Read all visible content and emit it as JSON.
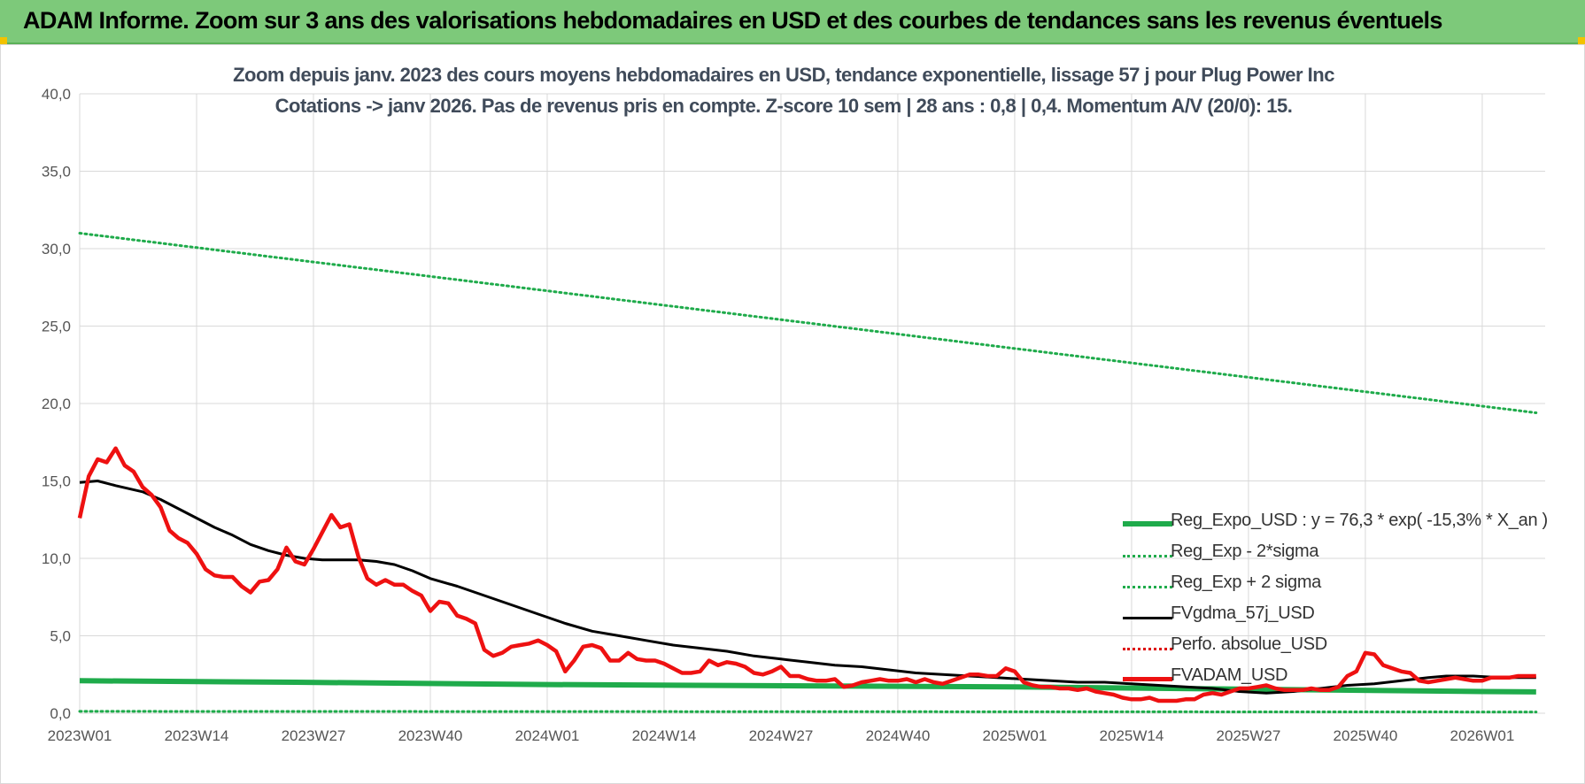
{
  "banner": {
    "title": "ADAM Informe. Zoom sur 3 ans des valorisations hebdomadaires en USD et des courbes de tendances sans les revenus éventuels"
  },
  "colors": {
    "banner": "#7dc97a",
    "trend": "#1fab4b",
    "price": "#ee1111",
    "smooth": "#000000",
    "perf": "#dd0000"
  },
  "chart_data": {
    "type": "line",
    "title": "Zoom depuis janv. 2023 des cours moyens hebdomadaires en USD, tendance exponentielle, lissage 57 j pour Plug Power Inc",
    "subtitle": "Cotations -> janv 2026. Pas de revenus pris en compte. Z-score 10 sem  | 28 ans : 0,8 | 0,4. Momentum A/V (20/0): 15.",
    "xlabel": "",
    "ylabel": "",
    "ylim": [
      0,
      40
    ],
    "yticks": [
      "0,0",
      "5,0",
      "10,0",
      "15,0",
      "20,0",
      "25,0",
      "30,0",
      "35,0",
      "40,0"
    ],
    "xticks": [
      "2023W01",
      "2023W14",
      "2023W27",
      "2023W40",
      "2024W01",
      "2024W14",
      "2024W27",
      "2024W40",
      "2025W01",
      "2025W14",
      "2025W27",
      "2025W40",
      "2026W01"
    ],
    "x_weeks": 163,
    "grid": true,
    "legend_position": "bottom-right",
    "series": [
      {
        "name": "Reg_Expo_USD : y = 76,3 * exp( -15,3% *  X_an )",
        "style": "thick-solid",
        "color": "#1fab4b",
        "points": [
          [
            0,
            2.1
          ],
          [
            24,
            2.0
          ],
          [
            52,
            1.85
          ],
          [
            104,
            1.7
          ],
          [
            156,
            1.4
          ],
          [
            162,
            1.38
          ]
        ]
      },
      {
        "name": "Reg_Exp - 2*sigma",
        "style": "dotted",
        "color": "#1fab4b",
        "points": [
          [
            0,
            0.12
          ],
          [
            162,
            0.08
          ]
        ]
      },
      {
        "name": "Reg_Exp + 2 sigma",
        "style": "dotted",
        "color": "#1fab4b",
        "points": [
          [
            0,
            31.0
          ],
          [
            162,
            19.4
          ]
        ]
      },
      {
        "name": "FVgdma_57j_USD",
        "style": "solid",
        "color": "#000000",
        "points": [
          [
            0,
            14.9
          ],
          [
            2,
            15.0
          ],
          [
            4,
            14.7
          ],
          [
            7,
            14.3
          ],
          [
            9,
            13.8
          ],
          [
            11,
            13.2
          ],
          [
            13,
            12.6
          ],
          [
            15,
            12.0
          ],
          [
            17,
            11.5
          ],
          [
            19,
            10.9
          ],
          [
            21,
            10.5
          ],
          [
            23,
            10.2
          ],
          [
            25,
            10.0
          ],
          [
            27,
            9.9
          ],
          [
            29,
            9.9
          ],
          [
            31,
            9.9
          ],
          [
            33,
            9.8
          ],
          [
            35,
            9.6
          ],
          [
            37,
            9.2
          ],
          [
            39,
            8.7
          ],
          [
            42,
            8.2
          ],
          [
            45,
            7.6
          ],
          [
            48,
            7.0
          ],
          [
            51,
            6.4
          ],
          [
            54,
            5.8
          ],
          [
            57,
            5.3
          ],
          [
            60,
            5.0
          ],
          [
            63,
            4.7
          ],
          [
            66,
            4.4
          ],
          [
            69,
            4.2
          ],
          [
            72,
            4.0
          ],
          [
            75,
            3.7
          ],
          [
            78,
            3.5
          ],
          [
            81,
            3.3
          ],
          [
            84,
            3.1
          ],
          [
            87,
            3.0
          ],
          [
            90,
            2.8
          ],
          [
            93,
            2.6
          ],
          [
            96,
            2.5
          ],
          [
            99,
            2.4
          ],
          [
            102,
            2.3
          ],
          [
            105,
            2.2
          ],
          [
            108,
            2.1
          ],
          [
            111,
            2.0
          ],
          [
            114,
            2.0
          ],
          [
            117,
            1.9
          ],
          [
            120,
            1.8
          ],
          [
            123,
            1.7
          ],
          [
            126,
            1.6
          ],
          [
            129,
            1.4
          ],
          [
            132,
            1.3
          ],
          [
            135,
            1.4
          ],
          [
            138,
            1.6
          ],
          [
            141,
            1.8
          ],
          [
            144,
            1.9
          ],
          [
            147,
            2.1
          ],
          [
            150,
            2.3
          ],
          [
            152,
            2.4
          ],
          [
            155,
            2.4
          ],
          [
            158,
            2.3
          ],
          [
            162,
            2.3
          ]
        ]
      },
      {
        "name": "Perfo. absolue_USD",
        "style": "dotted",
        "color": "#dd0000",
        "points": []
      },
      {
        "name": "FVADAM_USD",
        "style": "thick-solid",
        "color": "#ee1111",
        "points": [
          [
            0,
            12.6
          ],
          [
            1,
            15.3
          ],
          [
            2,
            16.4
          ],
          [
            3,
            16.2
          ],
          [
            4,
            17.1
          ],
          [
            5,
            16.0
          ],
          [
            6,
            15.6
          ],
          [
            7,
            14.6
          ],
          [
            8,
            14.1
          ],
          [
            9,
            13.3
          ],
          [
            10,
            11.8
          ],
          [
            11,
            11.3
          ],
          [
            12,
            11.0
          ],
          [
            13,
            10.3
          ],
          [
            14,
            9.3
          ],
          [
            15,
            8.9
          ],
          [
            16,
            8.8
          ],
          [
            17,
            8.8
          ],
          [
            18,
            8.2
          ],
          [
            19,
            7.8
          ],
          [
            20,
            8.5
          ],
          [
            21,
            8.6
          ],
          [
            22,
            9.3
          ],
          [
            23,
            10.7
          ],
          [
            24,
            9.8
          ],
          [
            25,
            9.6
          ],
          [
            26,
            10.6
          ],
          [
            27,
            11.7
          ],
          [
            28,
            12.8
          ],
          [
            29,
            12.0
          ],
          [
            30,
            12.2
          ],
          [
            31,
            10.1
          ],
          [
            32,
            8.7
          ],
          [
            33,
            8.3
          ],
          [
            34,
            8.6
          ],
          [
            35,
            8.3
          ],
          [
            36,
            8.3
          ],
          [
            37,
            7.9
          ],
          [
            38,
            7.6
          ],
          [
            39,
            6.6
          ],
          [
            40,
            7.2
          ],
          [
            41,
            7.1
          ],
          [
            42,
            6.3
          ],
          [
            43,
            6.1
          ],
          [
            44,
            5.8
          ],
          [
            45,
            4.1
          ],
          [
            46,
            3.7
          ],
          [
            47,
            3.9
          ],
          [
            48,
            4.3
          ],
          [
            49,
            4.4
          ],
          [
            50,
            4.5
          ],
          [
            51,
            4.7
          ],
          [
            52,
            4.4
          ],
          [
            53,
            4.0
          ],
          [
            54,
            2.7
          ],
          [
            55,
            3.4
          ],
          [
            56,
            4.3
          ],
          [
            57,
            4.4
          ],
          [
            58,
            4.2
          ],
          [
            59,
            3.4
          ],
          [
            60,
            3.4
          ],
          [
            61,
            3.9
          ],
          [
            62,
            3.5
          ],
          [
            63,
            3.4
          ],
          [
            64,
            3.4
          ],
          [
            65,
            3.2
          ],
          [
            66,
            2.9
          ],
          [
            67,
            2.6
          ],
          [
            68,
            2.6
          ],
          [
            69,
            2.7
          ],
          [
            70,
            3.4
          ],
          [
            71,
            3.1
          ],
          [
            72,
            3.3
          ],
          [
            73,
            3.2
          ],
          [
            74,
            3.0
          ],
          [
            75,
            2.6
          ],
          [
            76,
            2.5
          ],
          [
            77,
            2.7
          ],
          [
            78,
            3.0
          ],
          [
            79,
            2.4
          ],
          [
            80,
            2.4
          ],
          [
            81,
            2.2
          ],
          [
            82,
            2.1
          ],
          [
            83,
            2.1
          ],
          [
            84,
            2.2
          ],
          [
            85,
            1.7
          ],
          [
            86,
            1.8
          ],
          [
            87,
            2.0
          ],
          [
            88,
            2.1
          ],
          [
            89,
            2.2
          ],
          [
            90,
            2.1
          ],
          [
            91,
            2.1
          ],
          [
            92,
            2.2
          ],
          [
            93,
            2.0
          ],
          [
            94,
            2.2
          ],
          [
            95,
            2.0
          ],
          [
            96,
            1.9
          ],
          [
            97,
            2.1
          ],
          [
            98,
            2.3
          ],
          [
            99,
            2.5
          ],
          [
            100,
            2.5
          ],
          [
            101,
            2.4
          ],
          [
            102,
            2.4
          ],
          [
            103,
            2.9
          ],
          [
            104,
            2.7
          ],
          [
            105,
            2.0
          ],
          [
            106,
            1.8
          ],
          [
            107,
            1.7
          ],
          [
            108,
            1.7
          ],
          [
            109,
            1.6
          ],
          [
            110,
            1.6
          ],
          [
            111,
            1.5
          ],
          [
            112,
            1.6
          ],
          [
            113,
            1.4
          ],
          [
            114,
            1.3
          ],
          [
            115,
            1.2
          ],
          [
            116,
            1.0
          ],
          [
            117,
            0.9
          ],
          [
            118,
            0.9
          ],
          [
            119,
            1.0
          ],
          [
            120,
            0.8
          ],
          [
            121,
            0.8
          ],
          [
            122,
            0.8
          ],
          [
            123,
            0.9
          ],
          [
            124,
            0.9
          ],
          [
            125,
            1.2
          ],
          [
            126,
            1.3
          ],
          [
            127,
            1.2
          ],
          [
            128,
            1.4
          ],
          [
            129,
            1.6
          ],
          [
            130,
            1.6
          ],
          [
            131,
            1.7
          ],
          [
            132,
            1.8
          ],
          [
            133,
            1.6
          ],
          [
            134,
            1.5
          ],
          [
            135,
            1.5
          ],
          [
            136,
            1.5
          ],
          [
            137,
            1.6
          ],
          [
            138,
            1.5
          ],
          [
            139,
            1.5
          ],
          [
            140,
            1.7
          ],
          [
            141,
            2.4
          ],
          [
            142,
            2.7
          ],
          [
            143,
            3.9
          ],
          [
            144,
            3.8
          ],
          [
            145,
            3.1
          ],
          [
            146,
            2.9
          ],
          [
            147,
            2.7
          ],
          [
            148,
            2.6
          ],
          [
            149,
            2.1
          ],
          [
            150,
            2.0
          ],
          [
            151,
            2.1
          ],
          [
            152,
            2.2
          ],
          [
            153,
            2.3
          ],
          [
            154,
            2.2
          ],
          [
            155,
            2.1
          ],
          [
            156,
            2.1
          ],
          [
            157,
            2.3
          ],
          [
            158,
            2.3
          ],
          [
            159,
            2.3
          ],
          [
            160,
            2.4
          ],
          [
            161,
            2.4
          ],
          [
            162,
            2.4
          ]
        ]
      }
    ]
  }
}
